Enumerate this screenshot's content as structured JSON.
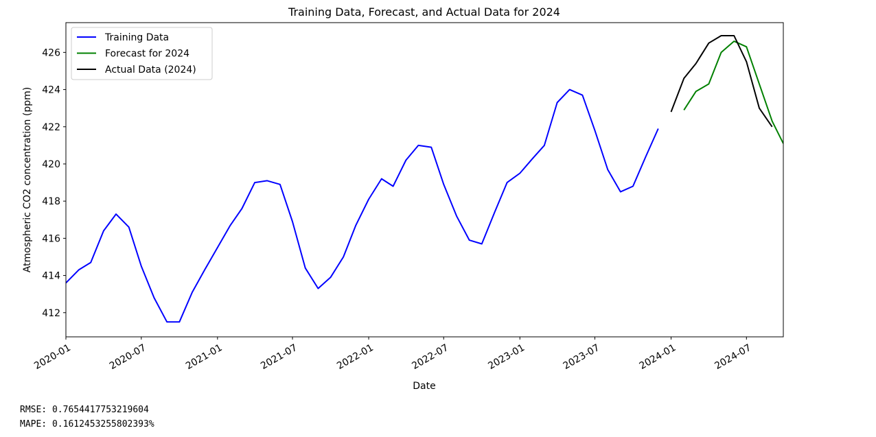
{
  "chart_data": {
    "type": "line",
    "title": "Training Data, Forecast, and Actual Data for 2024",
    "xlabel": "Date",
    "ylabel": "Atmospheric CO2 concentration (ppm)",
    "xlim": [
      "2020-01-01",
      "2024-09-28"
    ],
    "ylim": [
      410.7,
      427.6
    ],
    "yticks": [
      412,
      414,
      416,
      418,
      420,
      422,
      424,
      426
    ],
    "xticks": [
      "2020-01",
      "2020-07",
      "2021-01",
      "2021-07",
      "2022-01",
      "2022-07",
      "2023-01",
      "2023-07",
      "2024-01",
      "2024-07"
    ],
    "grid": false,
    "legend_position": "top-left",
    "series": [
      {
        "name": "Training Data",
        "color": "#0000ff",
        "x": [
          "2020-01-01",
          "2020-02-01",
          "2020-03-01",
          "2020-04-01",
          "2020-05-01",
          "2020-06-01",
          "2020-07-01",
          "2020-08-01",
          "2020-09-01",
          "2020-10-01",
          "2020-11-01",
          "2020-12-01",
          "2021-01-01",
          "2021-02-01",
          "2021-03-01",
          "2021-04-01",
          "2021-05-01",
          "2021-06-01",
          "2021-07-01",
          "2021-08-01",
          "2021-09-01",
          "2021-10-01",
          "2021-11-01",
          "2021-12-01",
          "2022-01-01",
          "2022-02-01",
          "2022-03-01",
          "2022-04-01",
          "2022-05-01",
          "2022-06-01",
          "2022-07-01",
          "2022-08-01",
          "2022-09-01",
          "2022-10-01",
          "2022-11-01",
          "2022-12-01",
          "2023-01-01",
          "2023-02-01",
          "2023-03-01",
          "2023-04-01",
          "2023-05-01",
          "2023-06-01",
          "2023-07-01",
          "2023-08-01",
          "2023-09-01",
          "2023-10-01",
          "2023-11-01",
          "2023-12-01"
        ],
        "y": [
          413.6,
          414.3,
          414.7,
          416.4,
          417.3,
          416.6,
          414.5,
          412.8,
          411.5,
          411.5,
          413.1,
          414.3,
          415.5,
          416.7,
          417.6,
          419.0,
          419.1,
          418.9,
          416.9,
          414.4,
          413.3,
          413.9,
          415.0,
          416.7,
          418.1,
          419.2,
          418.8,
          420.2,
          421.0,
          420.9,
          418.9,
          417.2,
          415.9,
          415.7,
          417.4,
          419.0,
          419.5,
          420.3,
          421.0,
          423.3,
          424.0,
          423.7,
          421.8,
          419.7,
          418.5,
          418.8,
          420.4,
          421.9
        ]
      },
      {
        "name": "Forecast for 2024",
        "color": "#008000",
        "x": [
          "2024-02-01",
          "2024-03-01",
          "2024-04-01",
          "2024-05-01",
          "2024-06-01",
          "2024-07-01",
          "2024-08-01",
          "2024-09-01",
          "2024-09-28"
        ],
        "y": [
          422.9,
          423.9,
          424.3,
          426.0,
          426.6,
          426.3,
          424.3,
          422.3,
          421.1
        ]
      },
      {
        "name": "Actual Data (2024)",
        "color": "#000000",
        "x": [
          "2024-01-01",
          "2024-02-01",
          "2024-03-01",
          "2024-04-01",
          "2024-05-01",
          "2024-06-01",
          "2024-07-01",
          "2024-08-01",
          "2024-09-01"
        ],
        "y": [
          422.8,
          424.6,
          425.4,
          426.5,
          426.9,
          426.9,
          425.5,
          423.0,
          422.0
        ]
      }
    ]
  },
  "output": {
    "rmse": "RMSE: 0.7654417753219604",
    "mape": "MAPE: 0.1612453255802393%"
  }
}
